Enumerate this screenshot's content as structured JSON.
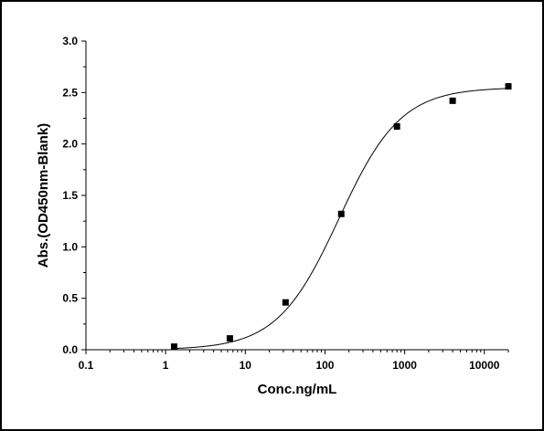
{
  "chart_data": {
    "type": "scatter",
    "title": "",
    "xlabel": "Conc.ng/mL",
    "ylabel": "Abs.(OD450nm-Blank)",
    "x_scale": "log",
    "xlim": [
      0.1,
      20000
    ],
    "ylim": [
      0.0,
      3.0
    ],
    "x_ticks": [
      0.1,
      1,
      10,
      100,
      1000,
      10000
    ],
    "x_tick_labels": [
      "0.1",
      "1",
      "10",
      "100",
      "1000",
      "10000"
    ],
    "y_ticks": [
      0.0,
      0.5,
      1.0,
      1.5,
      2.0,
      2.5,
      3.0
    ],
    "y_tick_labels": [
      "0.0",
      "0.5",
      "1.0",
      "1.5",
      "2.0",
      "2.5",
      "3.0"
    ],
    "grid": false,
    "legend": "none",
    "series": [
      {
        "x": [
          1.28,
          6.4,
          32,
          160,
          800,
          4000,
          20000
        ],
        "y": [
          0.03,
          0.11,
          0.46,
          1.32,
          2.17,
          2.42,
          2.56
        ],
        "marker": "square",
        "color": "#000000"
      }
    ],
    "fit_curve": {
      "model": "4PL",
      "A": 0.0,
      "D": 2.55,
      "C": 150,
      "B": 1.12,
      "color": "#000000"
    }
  }
}
